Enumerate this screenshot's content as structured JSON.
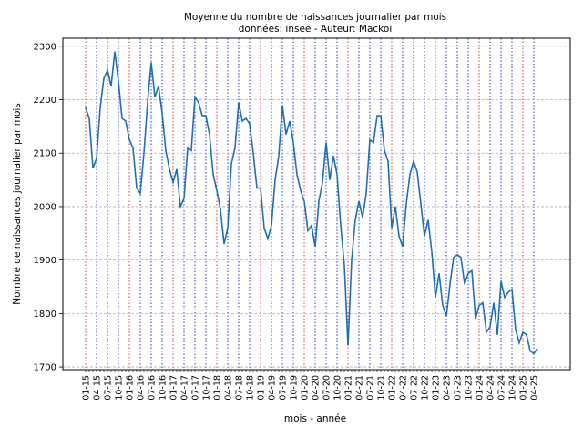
{
  "chart_data": {
    "type": "line",
    "title": "Moyenne du nombre de naissances journalier par mois",
    "subtitle": "données: insee - Auteur: Mackoi",
    "xlabel": "mois - année",
    "ylabel": "Nombre de naissances journalier par mois",
    "ylim": [
      1695,
      2315
    ],
    "yticks": [
      1700,
      1800,
      1900,
      2000,
      2100,
      2200,
      2300
    ],
    "grid": true,
    "x_tick_labels": [
      "01-15",
      "04-15",
      "07-15",
      "10-15",
      "01-16",
      "04-16",
      "07-16",
      "10-16",
      "01-17",
      "04-17",
      "07-17",
      "10-17",
      "01-18",
      "04-18",
      "07-18",
      "10-18",
      "01-19",
      "04-19",
      "07-19",
      "10-19",
      "01-20",
      "04-20",
      "07-20",
      "10-20",
      "01-21",
      "04-21",
      "07-21",
      "10-21",
      "01-22",
      "04-22",
      "07-22",
      "10-22",
      "01-23",
      "04-23",
      "07-23",
      "10-23",
      "01-24",
      "04-24",
      "07-24",
      "10-24",
      "01-25",
      "04-25"
    ],
    "year_line_color": "#d62728",
    "month_line_color": "#1f1fbf",
    "line_color": "#1f6fb4",
    "series": [
      {
        "values": [
          2185,
          2165,
          2072,
          2090,
          2185,
          2240,
          2255,
          2225,
          2290,
          2235,
          2165,
          2160,
          2125,
          2110,
          2035,
          2025,
          2100,
          2195,
          2270,
          2205,
          2225,
          2175,
          2105,
          2070,
          2045,
          2070,
          2000,
          2015,
          2110,
          2105,
          2205,
          2195,
          2170,
          2170,
          2135,
          2060,
          2030,
          1995,
          1930,
          1960,
          2080,
          2110,
          2195,
          2160,
          2165,
          2155,
          2100,
          2035,
          2035,
          1960,
          1940,
          1965,
          2050,
          2095,
          2190,
          2135,
          2160,
          2120,
          2060,
          2030,
          2010,
          1955,
          1965,
          1925,
          2010,
          2045,
          2120,
          2050,
          2095,
          2060,
          1965,
          1890,
          1740,
          1900,
          1975,
          2010,
          1980,
          2025,
          2125,
          2120,
          2170,
          2170,
          2105,
          2085,
          1960,
          2000,
          1945,
          1925,
          2005,
          2060,
          2085,
          2065,
          2005,
          1945,
          1975,
          1915,
          1830,
          1875,
          1815,
          1795,
          1855,
          1905,
          1910,
          1905,
          1855,
          1875,
          1880,
          1790,
          1815,
          1820,
          1765,
          1775,
          1820,
          1760,
          1860,
          1830,
          1840,
          1845,
          1770,
          1745,
          1765,
          1760,
          1730,
          1725,
          1735
        ]
      }
    ]
  }
}
